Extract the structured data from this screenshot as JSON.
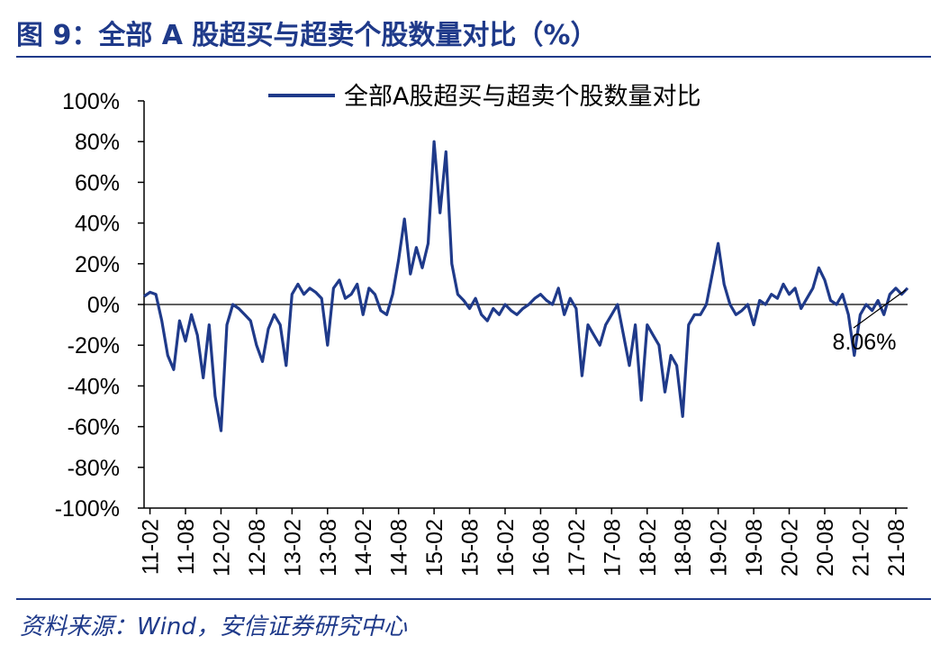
{
  "figure": {
    "title": "图 9：全部 A 股超买与超卖个股数量对比（%）",
    "source": "资料来源：Wind，安信证券研究中心"
  },
  "chart_data": {
    "type": "line",
    "title": "",
    "xlabel": "",
    "ylabel": "",
    "ylim": [
      -100,
      100
    ],
    "yticks": [
      "100%",
      "80%",
      "60%",
      "40%",
      "20%",
      "0%",
      "-20%",
      "-40%",
      "-60%",
      "-80%",
      "-100%"
    ],
    "ytick_values": [
      100,
      80,
      60,
      40,
      20,
      0,
      -20,
      -40,
      -60,
      -80,
      -100
    ],
    "xticks": [
      "11-02",
      "11-08",
      "12-02",
      "12-08",
      "13-02",
      "13-08",
      "14-02",
      "14-08",
      "15-02",
      "15-08",
      "16-02",
      "16-08",
      "17-02",
      "17-08",
      "18-02",
      "18-08",
      "19-02",
      "19-08",
      "20-02",
      "20-08",
      "21-02",
      "21-08"
    ],
    "legend_position": "top-center",
    "series": [
      {
        "name": "全部A股超买与超卖个股数量对比",
        "color": "#1f3a8a",
        "x": [
          "2011-01",
          "2011-02",
          "2011-03",
          "2011-04",
          "2011-05",
          "2011-06",
          "2011-07",
          "2011-08",
          "2011-09",
          "2011-10",
          "2011-11",
          "2011-12",
          "2012-01",
          "2012-02",
          "2012-03",
          "2012-04",
          "2012-05",
          "2012-06",
          "2012-07",
          "2012-08",
          "2012-09",
          "2012-10",
          "2012-11",
          "2012-12",
          "2013-01",
          "2013-02",
          "2013-03",
          "2013-04",
          "2013-05",
          "2013-06",
          "2013-07",
          "2013-08",
          "2013-09",
          "2013-10",
          "2013-11",
          "2013-12",
          "2014-01",
          "2014-02",
          "2014-03",
          "2014-04",
          "2014-05",
          "2014-06",
          "2014-07",
          "2014-08",
          "2014-09",
          "2014-10",
          "2014-11",
          "2014-12",
          "2015-01",
          "2015-02",
          "2015-03",
          "2015-04",
          "2015-05",
          "2015-06",
          "2015-07",
          "2015-08",
          "2015-09",
          "2015-10",
          "2015-11",
          "2015-12",
          "2016-01",
          "2016-02",
          "2016-03",
          "2016-04",
          "2016-05",
          "2016-06",
          "2016-07",
          "2016-08",
          "2016-09",
          "2016-10",
          "2016-11",
          "2016-12",
          "2017-01",
          "2017-02",
          "2017-03",
          "2017-04",
          "2017-05",
          "2017-06",
          "2017-07",
          "2017-08",
          "2017-09",
          "2017-10",
          "2017-11",
          "2017-12",
          "2018-01",
          "2018-02",
          "2018-03",
          "2018-04",
          "2018-05",
          "2018-06",
          "2018-07",
          "2018-08",
          "2018-09",
          "2018-10",
          "2018-11",
          "2018-12",
          "2019-01",
          "2019-02",
          "2019-03",
          "2019-04",
          "2019-05",
          "2019-06",
          "2019-07",
          "2019-08",
          "2019-09",
          "2019-10",
          "2019-11",
          "2019-12",
          "2020-01",
          "2020-02",
          "2020-03",
          "2020-04",
          "2020-05",
          "2020-06",
          "2020-07",
          "2020-08",
          "2020-09",
          "2020-10",
          "2020-11",
          "2020-12",
          "2021-01",
          "2021-02",
          "2021-03",
          "2021-04",
          "2021-05",
          "2021-06",
          "2021-07",
          "2021-08",
          "2021-09",
          "2021-10"
        ],
        "values": [
          4,
          6,
          5,
          -8,
          -25,
          -32,
          -8,
          -18,
          -5,
          -15,
          -36,
          -10,
          -45,
          -62,
          -10,
          0,
          -2,
          -5,
          -8,
          -20,
          -28,
          -12,
          -5,
          -10,
          -30,
          5,
          10,
          5,
          8,
          6,
          3,
          -20,
          8,
          12,
          3,
          5,
          10,
          -5,
          8,
          5,
          -3,
          -5,
          5,
          22,
          42,
          15,
          28,
          18,
          30,
          80,
          45,
          75,
          20,
          5,
          2,
          -2,
          3,
          -5,
          -8,
          -2,
          -5,
          0,
          -3,
          -5,
          -2,
          0,
          3,
          5,
          2,
          0,
          8,
          -5,
          3,
          -2,
          -35,
          -10,
          -15,
          -20,
          -10,
          -5,
          0,
          -15,
          -30,
          -10,
          -47,
          -10,
          -15,
          -20,
          -43,
          -25,
          -30,
          -55,
          -10,
          -5,
          -5,
          0,
          15,
          30,
          10,
          0,
          -5,
          -3,
          0,
          -10,
          2,
          0,
          5,
          3,
          10,
          5,
          8,
          -2,
          3,
          8,
          18,
          12,
          2,
          0,
          5,
          -5,
          -25,
          -5,
          0,
          -3,
          2,
          -5,
          5,
          8,
          5,
          8.06
        ],
        "annotation": {
          "text": "8.06%",
          "x": "2021-10",
          "y": 8.06
        }
      }
    ]
  }
}
